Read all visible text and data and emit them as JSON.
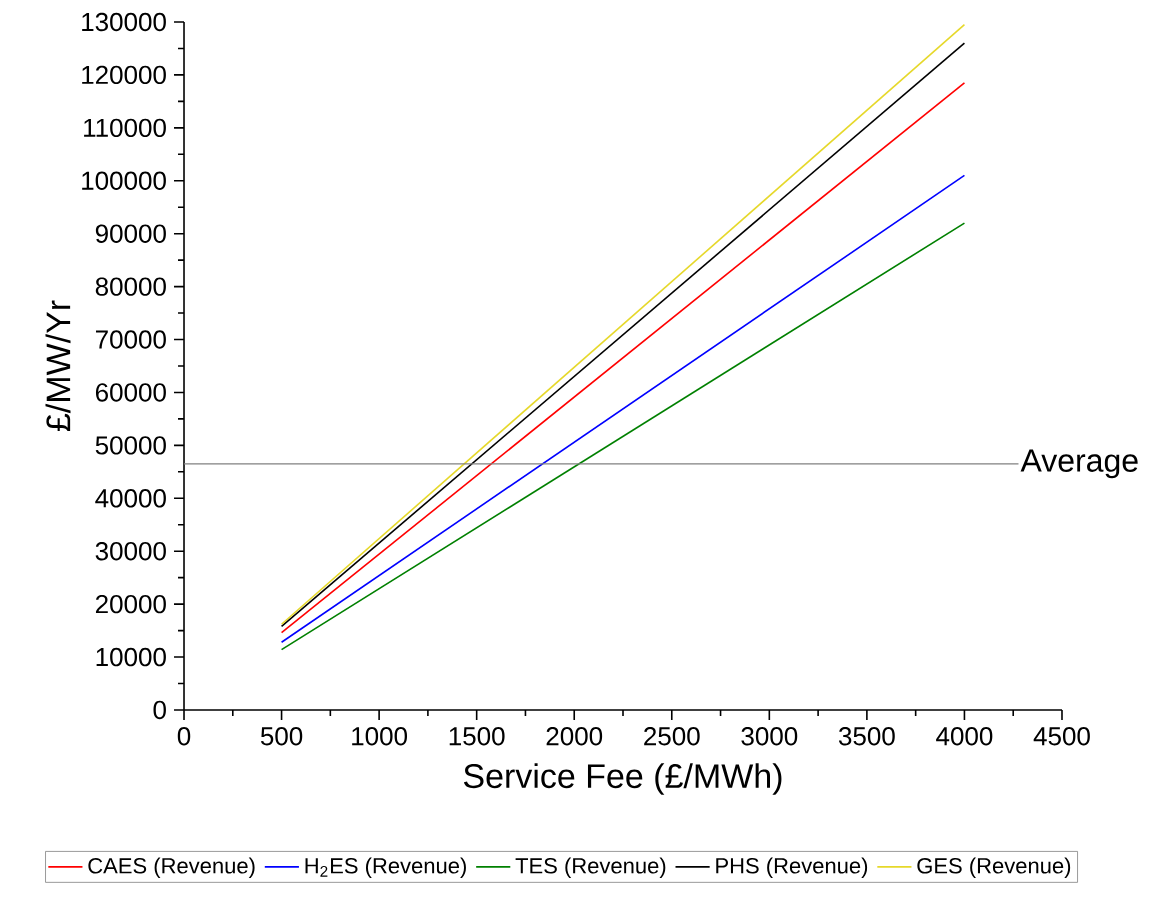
{
  "chart_data": {
    "type": "line",
    "xlabel": "Service Fee (£/MWh)",
    "ylabel": "£/MW/Yr",
    "x": [
      500,
      4000
    ],
    "series": [
      {
        "name": "CAES (Revenue)",
        "color": "#ff0000",
        "values": [
          14600,
          118500
        ]
      },
      {
        "name": "H$_{2}$ES (Revenue)",
        "color": "#0000ff",
        "values": [
          12800,
          101000
        ]
      },
      {
        "name": "TES (Revenue)",
        "color": "#008000",
        "values": [
          11400,
          92000
        ]
      },
      {
        "name": "PHS (Revenue)",
        "color": "#000000",
        "values": [
          15800,
          126000
        ]
      },
      {
        "name": "GES (Revenue)",
        "color": "#e6d82a",
        "values": [
          16200,
          129500
        ]
      }
    ],
    "xlim": [
      0,
      4500
    ],
    "xticks": [
      0,
      500,
      1000,
      1500,
      2000,
      2500,
      3000,
      3500,
      4000,
      4500
    ],
    "ylim": [
      0,
      130000
    ],
    "yticks": [
      0,
      10000,
      20000,
      30000,
      40000,
      50000,
      60000,
      70000,
      80000,
      90000,
      100000,
      110000,
      120000,
      130000
    ],
    "ref_lines": [
      {
        "axis": "y",
        "value": 46500,
        "label": "Average",
        "color": "#808080"
      }
    ],
    "grid": false,
    "legend": "bottom",
    "marker": "none",
    "line_style": "solid"
  }
}
